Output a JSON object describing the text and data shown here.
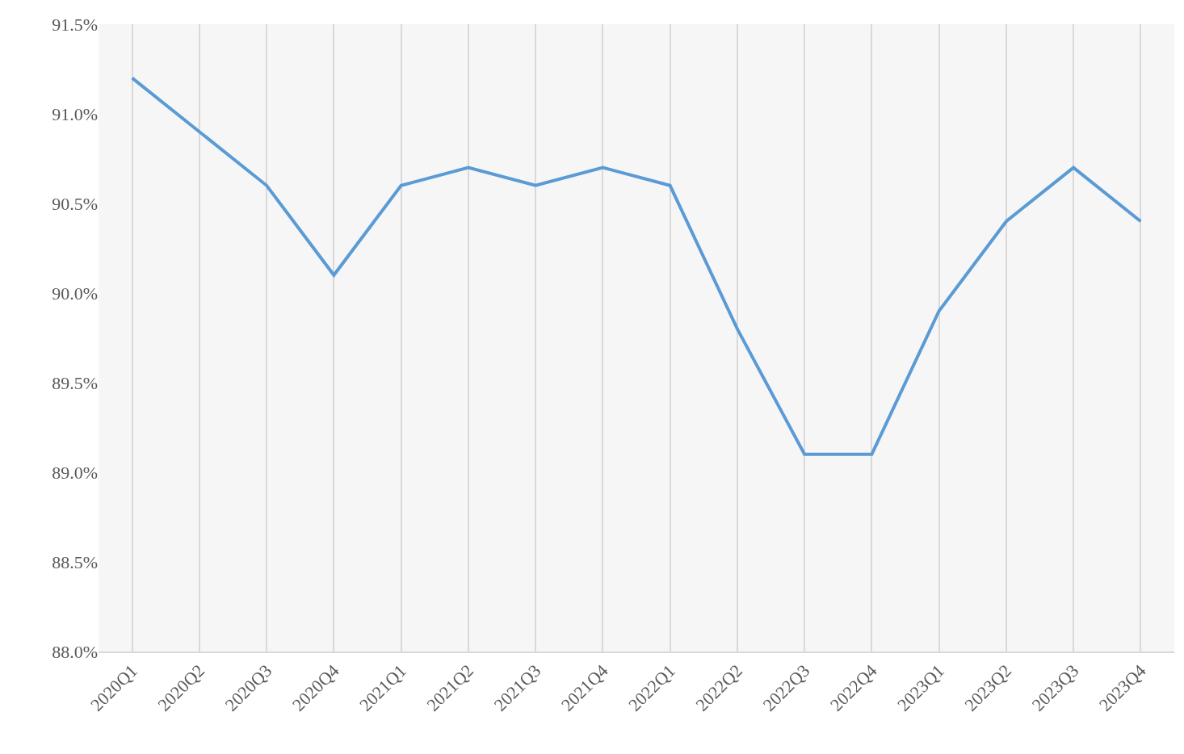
{
  "chart_data": {
    "type": "line",
    "categories": [
      "2020Q1",
      "2020Q2",
      "2020Q3",
      "2020Q4",
      "2021Q1",
      "2021Q2",
      "2021Q3",
      "2021Q4",
      "2022Q1",
      "2022Q2",
      "2022Q3",
      "2022Q4",
      "2023Q1",
      "2023Q2",
      "2023Q3",
      "2023Q4"
    ],
    "series": [
      {
        "color": "#5b9bd5",
        "values": [
          91.2,
          90.9,
          90.6,
          90.1,
          90.6,
          90.7,
          90.6,
          90.7,
          90.6,
          89.8,
          89.1,
          89.1,
          89.9,
          90.4,
          90.7,
          90.4
        ]
      }
    ],
    "ylim": [
      88,
      91.5
    ],
    "yticks": [
      {
        "value": 88,
        "label": "88.0%"
      },
      {
        "value": 88.5,
        "label": "88.5%"
      },
      {
        "value": 89,
        "label": "89.0%"
      },
      {
        "value": 89.5,
        "label": "89.5%"
      },
      {
        "value": 90,
        "label": "90.0%"
      },
      {
        "value": 90.5,
        "label": "90.5%"
      },
      {
        "value": 91,
        "label": "91.0%"
      },
      {
        "value": 91.5,
        "label": "91.5%"
      }
    ],
    "grid": "x",
    "marker": "none",
    "line_style": "solid"
  }
}
